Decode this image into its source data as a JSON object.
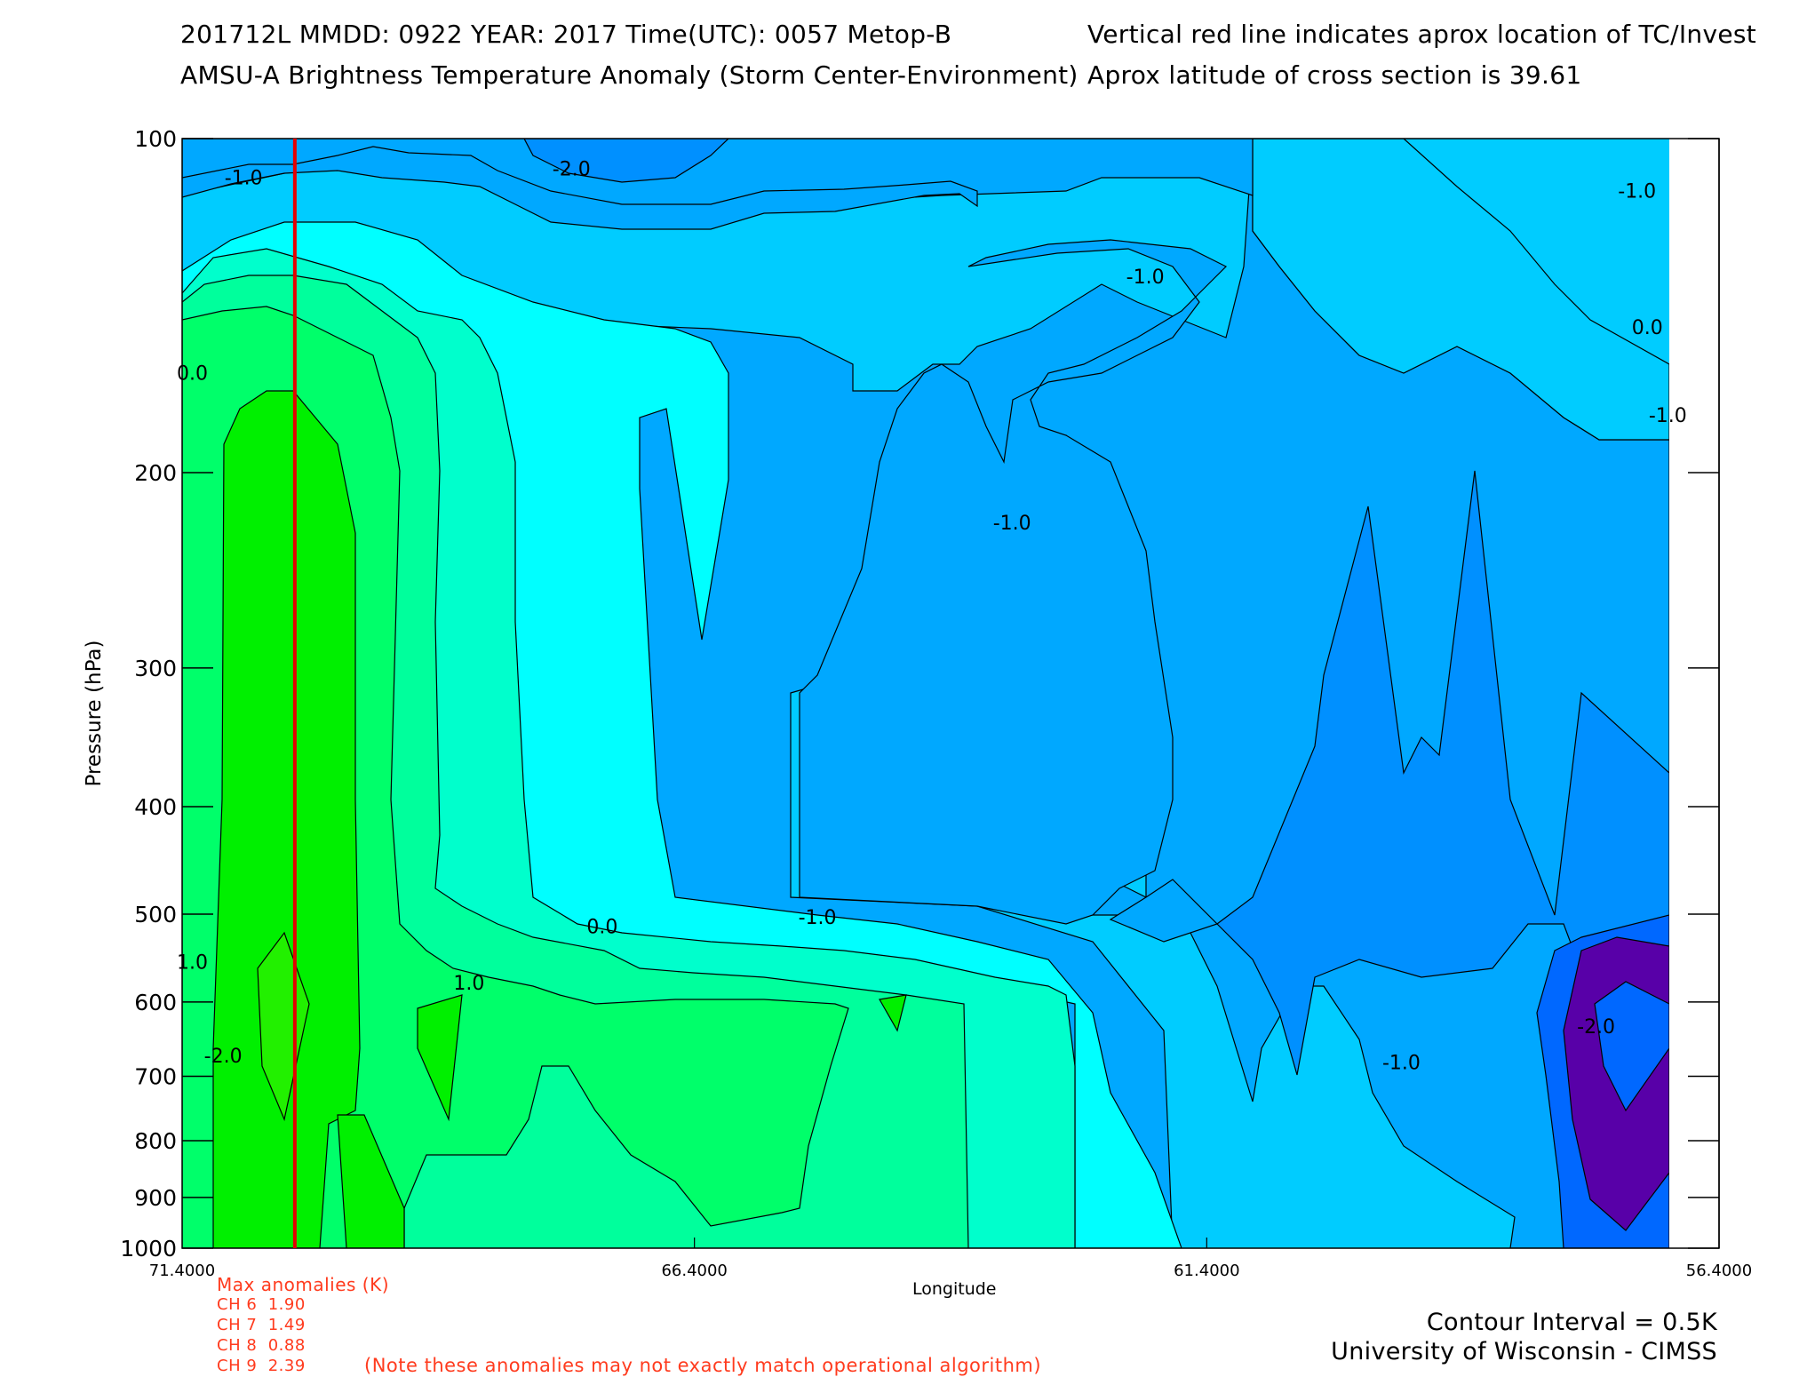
{
  "header": {
    "line1_left": "201712L  MMDD: 0922 YEAR: 2017 Time(UTC): 0057 Metop-B",
    "line2_left": "AMSU-A Brightness Temperature Anomaly (Storm Center-Environment)",
    "line1_right": "Vertical red line indicates aprox location of TC/Invest",
    "line2_right": "Aprox latitude of cross section is 39.61"
  },
  "chart_data": {
    "type": "heatmap",
    "subtype": "filled-contour cross section",
    "xlabel": "Longitude",
    "ylabel": "Pressure (hPa)",
    "x_ticks": [
      "71.4000",
      "66.4000",
      "61.4000",
      "56.4000"
    ],
    "x_tick_values": [
      71.4,
      66.4,
      61.4,
      56.4
    ],
    "xlim": [
      71.4,
      56.4
    ],
    "y_ticks": [
      "100",
      "200",
      "300",
      "400",
      "500",
      "600",
      "700",
      "800",
      "900",
      "1000"
    ],
    "y_tick_values": [
      100,
      200,
      300,
      400,
      500,
      600,
      700,
      800,
      900,
      1000
    ],
    "ylim": [
      100,
      1000
    ],
    "y_scale": "log",
    "storm_longitude": 70.3,
    "storm_marker_color": "#e60000",
    "contour_labels": [
      {
        "text": "-1.0",
        "lon": 70.8,
        "p": 110
      },
      {
        "text": "-2.0",
        "lon": 67.6,
        "p": 108
      },
      {
        "text": "-1.0",
        "lon": 62.0,
        "p": 135
      },
      {
        "text": "-1.0",
        "lon": 57.2,
        "p": 113
      },
      {
        "text": "0.0",
        "lon": 57.1,
        "p": 150
      },
      {
        "text": "-1.0",
        "lon": 56.9,
        "p": 180
      },
      {
        "text": "0.0",
        "lon": 71.3,
        "p": 165
      },
      {
        "text": "-1.0",
        "lon": 63.3,
        "p": 225
      },
      {
        "text": "0.0",
        "lon": 67.3,
        "p": 520
      },
      {
        "text": "-1.0",
        "lon": 65.2,
        "p": 510
      },
      {
        "text": "1.0",
        "lon": 68.6,
        "p": 585
      },
      {
        "text": "1.0",
        "lon": 71.3,
        "p": 560
      },
      {
        "text": "-2.0",
        "lon": 71.0,
        "p": 680
      },
      {
        "text": "-1.0",
        "lon": 59.5,
        "p": 690
      },
      {
        "text": "-2.0",
        "lon": 57.6,
        "p": 640
      }
    ],
    "fill_levels_K": [
      -2.5,
      -2.0,
      -1.5,
      -1.0,
      -0.5,
      0.0,
      0.5,
      1.0,
      1.5,
      2.0
    ],
    "fill_colors": {
      "-2.5": "#5800a8",
      "-2.0": "#0068ff",
      "-1.5": "#0090ff",
      "-1.0": "#00a8ff",
      "-0.5": "#00ccff",
      "0.0": "#00ffff",
      "0.5": "#00ffcc",
      "1.0": "#00ff9c",
      "1.5": "#00ff6a",
      "2.0": "#00f000"
    }
  },
  "max_anomalies": {
    "title": "Max anomalies (K)",
    "channels": [
      {
        "label": "CH 6",
        "value": "1.90"
      },
      {
        "label": "CH 7",
        "value": "1.49"
      },
      {
        "label": "CH 8",
        "value": "0.88"
      },
      {
        "label": "CH 9",
        "value": "2.39"
      }
    ],
    "note": "(Note these anomalies may not exactly match operational algorithm)"
  },
  "credits": {
    "contour_interval": "Contour Interval = 0.5K",
    "institution": "University of Wisconsin - CIMSS"
  }
}
